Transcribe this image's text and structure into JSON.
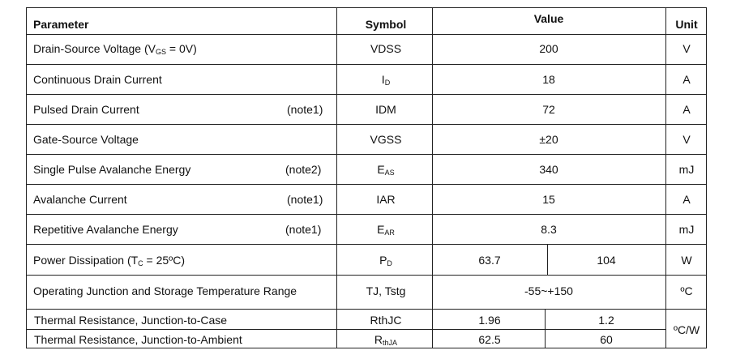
{
  "headers": {
    "parameter": "Parameter",
    "symbol": "Symbol",
    "value": "Value",
    "unit": "Unit"
  },
  "rows": [
    {
      "param_pre": "Drain-Source Voltage (V",
      "param_sub": "GS",
      "param_post": " = 0V)",
      "note": "",
      "symbol_main": "VDSS",
      "symbol_sub": "",
      "value": "200",
      "unit": "V"
    },
    {
      "param": "Continuous Drain Current",
      "note": "",
      "symbol_main": "I",
      "symbol_sub": "D",
      "value": "18",
      "unit": "A"
    },
    {
      "param": "Pulsed Drain Current",
      "note": "(note1)",
      "symbol_main": "IDM",
      "symbol_sub": "",
      "value": "72",
      "unit": "A"
    },
    {
      "param": "Gate-Source Voltage",
      "note": "",
      "symbol_main": "VGSS",
      "symbol_sub": "",
      "value": "±20",
      "unit": "V"
    },
    {
      "param": "Single Pulse Avalanche Energy",
      "note": "(note2)",
      "symbol_main": "E",
      "symbol_sub": "AS",
      "value": "340",
      "unit": "mJ"
    },
    {
      "param": "Avalanche Current",
      "note": "(note1)",
      "symbol_main": "IAR",
      "symbol_sub": "",
      "value": "15",
      "unit": "A"
    },
    {
      "param": "Repetitive Avalanche Energy",
      "note": "(note1)",
      "symbol_main": "E",
      "symbol_sub": "AR",
      "value": "8.3",
      "unit": "mJ"
    },
    {
      "param_pre": "Power Dissipation (T",
      "param_sub": "C",
      "param_post": " = 25ºC)",
      "note": "",
      "symbol_main": "P",
      "symbol_sub": "D",
      "value_a": "63.7",
      "value_b": "104",
      "unit": "W"
    },
    {
      "param": "Operating Junction and Storage Temperature Range",
      "note": "",
      "symbol_main": "TJ, Tstg",
      "symbol_sub": "",
      "value": "-55~+150",
      "unit": "ºC"
    },
    {
      "param": "Thermal Resistance, Junction-to-Case",
      "note": "",
      "symbol_main": "RthJC",
      "symbol_sub": "",
      "value_a": "1.96",
      "value_b": "1.2"
    },
    {
      "param": "Thermal Resistance, Junction-to-Ambient",
      "note": "",
      "symbol_main": "R",
      "symbol_sub": "thJA",
      "value_a": "62.5",
      "value_b": "60"
    }
  ],
  "thermal_unit": "ºC/W"
}
